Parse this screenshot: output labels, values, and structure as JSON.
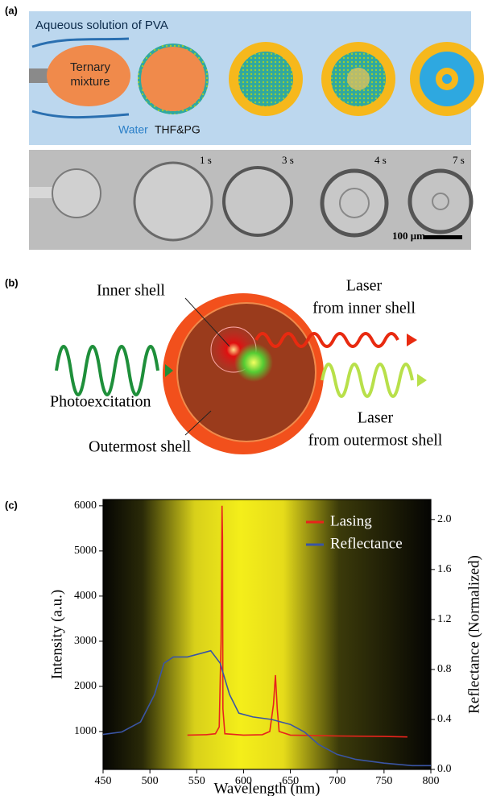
{
  "panel_a": {
    "label": "(a)",
    "solution": "Aqueous solution of PVA",
    "ternary": [
      "Ternary",
      "mixture"
    ],
    "water": "Water",
    "solvent": "THF&PG",
    "times": [
      "1 s",
      "3 s",
      "4 s",
      "7 s"
    ],
    "scale_bar": "100 μm"
  },
  "panel_b": {
    "label": "(b)",
    "inner_shell": "Inner shell",
    "laser_inner": [
      "Laser",
      "from inner shell"
    ],
    "photoexcitation": "Photoexcitation",
    "laser_outer": [
      "Laser",
      "from outermost shell"
    ],
    "outermost_shell": "Outermost shell"
  },
  "panel_c": {
    "label": "(c)"
  },
  "chart_data": {
    "type": "line",
    "xlabel": "Wavelength (nm)",
    "ylabel": "Intensity (a.u.)",
    "y2label": "Reflectance (Normalized)",
    "xlim": [
      450,
      800
    ],
    "xticks": [
      450,
      500,
      550,
      600,
      650,
      700,
      750,
      800
    ],
    "ylim": [
      160,
      6140
    ],
    "yticks": [
      1000,
      2000,
      3000,
      4000,
      5000,
      6000
    ],
    "y2lim": [
      0,
      2.16
    ],
    "y2ticks": [
      {
        "value": 0,
        "label": "0.0"
      },
      0.4,
      0.8,
      1.2,
      1.6,
      {
        "value": 2,
        "label": "2.0"
      }
    ],
    "legend": "upper right",
    "grid": false,
    "series": [
      {
        "name": "Lasing",
        "color": "#e8231c",
        "x": [
          540,
          560,
          570,
          574,
          576,
          577,
          577.5,
          578,
          580,
          600,
          620,
          628,
          632,
          634,
          636,
          638,
          650,
          700,
          750,
          775
        ],
        "values": [
          920,
          930,
          950,
          1100,
          3000,
          6000,
          5300,
          1500,
          950,
          920,
          930,
          1000,
          1600,
          2250,
          1500,
          1000,
          920,
          900,
          890,
          880
        ]
      },
      {
        "name": "Reflectance",
        "color": "#3a55a4",
        "axis": "y2",
        "x": [
          450,
          470,
          490,
          505,
          515,
          525,
          540,
          555,
          565,
          575,
          585,
          595,
          610,
          630,
          650,
          665,
          680,
          700,
          720,
          750,
          780,
          800
        ],
        "values": [
          0.28,
          0.3,
          0.38,
          0.6,
          0.85,
          0.9,
          0.9,
          0.93,
          0.95,
          0.85,
          0.6,
          0.45,
          0.42,
          0.4,
          0.36,
          0.3,
          0.2,
          0.12,
          0.08,
          0.05,
          0.03,
          0.03
        ]
      }
    ]
  }
}
